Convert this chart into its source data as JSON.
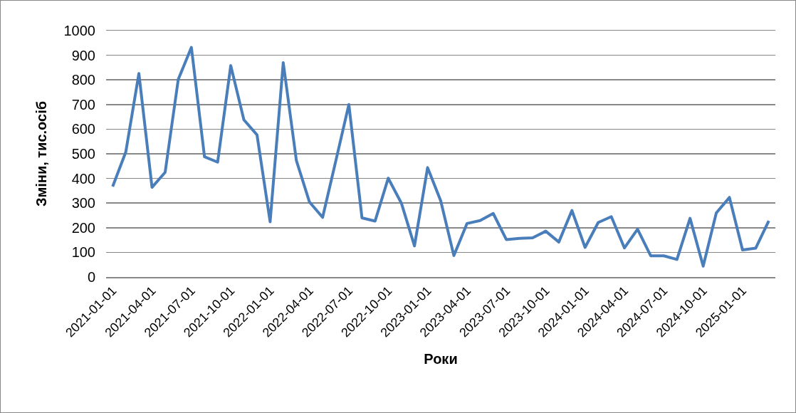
{
  "chart_data": {
    "type": "line",
    "xlabel": "Роки",
    "ylabel": "Зміни, тис.осіб",
    "categories": [
      "2021-01-01",
      null,
      null,
      "2021-04-01",
      null,
      null,
      "2021-07-01",
      null,
      null,
      "2021-10-01",
      null,
      null,
      "2022-01-01",
      null,
      null,
      "2022-04-01",
      null,
      null,
      "2022-07-01",
      null,
      null,
      "2022-10-01",
      null,
      null,
      "2023-01-01",
      null,
      null,
      "2023-04-01",
      null,
      null,
      "2023-07-01",
      null,
      null,
      "2023-10-01",
      null,
      null,
      "2024-01-01",
      null,
      null,
      "2024-04-01",
      null,
      null,
      "2024-07-01",
      null,
      null,
      "2024-10-01",
      null,
      null,
      "2025-01-01",
      null,
      null
    ],
    "series": [
      {
        "color": "#4a7ebb",
        "values": [
          367,
          507,
          826,
          364,
          425,
          802,
          932,
          488,
          466,
          858,
          638,
          577,
          224,
          870,
          473,
          304,
          242,
          470,
          700,
          240,
          227,
          401,
          300,
          126,
          444,
          309,
          87,
          217,
          229,
          258,
          152,
          157,
          159,
          186,
          142,
          270,
          120,
          221,
          245,
          118,
          194,
          86,
          86,
          71,
          238,
          44,
          260,
          323,
          110,
          117,
          228
        ]
      }
    ],
    "ylim": [
      0,
      1000
    ],
    "yticks": [
      0,
      100,
      200,
      300,
      400,
      500,
      600,
      700,
      800,
      900,
      1000
    ],
    "grid": "y",
    "marker": "none",
    "line_style": "solid"
  }
}
